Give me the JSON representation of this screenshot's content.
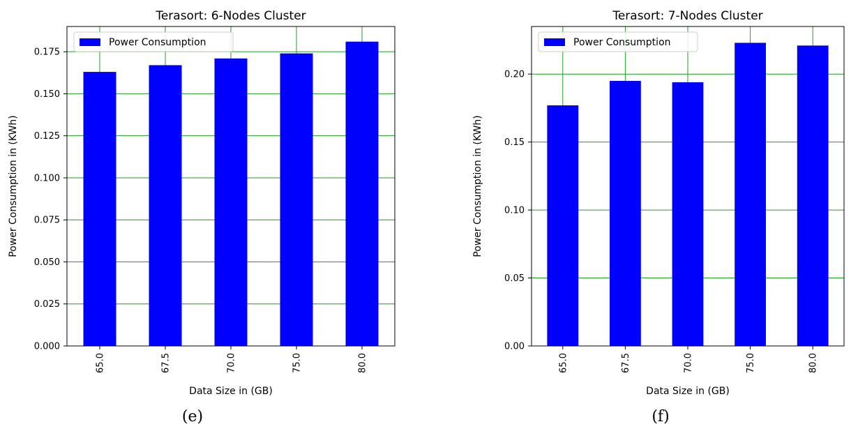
{
  "chart_data": [
    {
      "type": "bar",
      "title": "Terasort: 6-Nodes Cluster",
      "xlabel": "Data Size in (GB)",
      "ylabel": "Power Consumption in (KWh)",
      "categories": [
        "65.0",
        "67.5",
        "70.0",
        "75.0",
        "80.0"
      ],
      "series": [
        {
          "name": "Power Consumption",
          "values": [
            0.163,
            0.167,
            0.171,
            0.174,
            0.181
          ]
        }
      ],
      "ylim": [
        0,
        0.19
      ],
      "yticks": [
        0.0,
        0.025,
        0.05,
        0.075,
        0.1,
        0.125,
        0.15,
        0.175
      ],
      "ytick_labels": [
        "0.000",
        "0.025",
        "0.050",
        "0.075",
        "0.100",
        "0.125",
        "0.150",
        "0.175"
      ],
      "grid": true,
      "legend": "top-left",
      "caption": "(e)"
    },
    {
      "type": "bar",
      "title": "Terasort: 7-Nodes Cluster",
      "xlabel": "Data Size in (GB)",
      "ylabel": "Power Consumption in (KWh)",
      "categories": [
        "65.0",
        "67.5",
        "70.0",
        "75.0",
        "80.0"
      ],
      "series": [
        {
          "name": "Power Consumption",
          "values": [
            0.177,
            0.195,
            0.194,
            0.223,
            0.221
          ]
        }
      ],
      "ylim": [
        0,
        0.235
      ],
      "yticks": [
        0.0,
        0.05,
        0.1,
        0.15,
        0.2
      ],
      "ytick_labels": [
        "0.00",
        "0.05",
        "0.10",
        "0.15",
        "0.20"
      ],
      "grid": true,
      "legend": "top-left",
      "caption": "(f)"
    }
  ],
  "colors": {
    "bar": "#0000ff",
    "grid": "#1f9e1f",
    "axis": "#000000"
  }
}
